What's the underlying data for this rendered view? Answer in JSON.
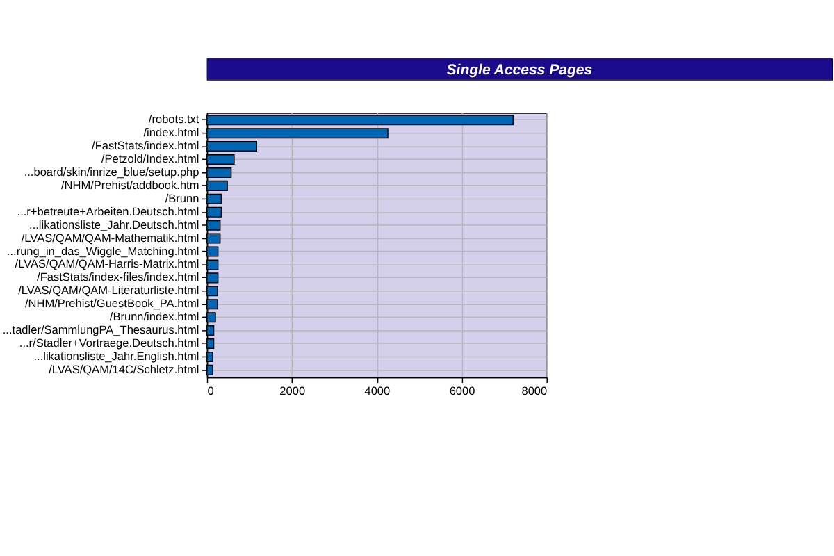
{
  "chart_data": {
    "type": "bar",
    "orientation": "horizontal",
    "title": "Single Access Pages",
    "categories": [
      "/robots.txt",
      "/index.html",
      "/FastStats/index.html",
      "/Petzold/Index.html",
      "...board/skin/inrize_blue/setup.php",
      "/NHM/Prehist/addbook.htm",
      "/Brunn",
      "...r+betreute+Arbeiten.Deutsch.html",
      "...likationsliste_Jahr.Deutsch.html",
      "/LVAS/QAM/QAM-Mathematik.html",
      "...rung_in_das_Wiggle_Matching.html",
      "/LVAS/QAM/QAM-Harris-Matrix.html",
      "/FastStats/index-files/index.html",
      "/LVAS/QAM/QAM-Literaturliste.html",
      "/NHM/Prehist/GuestBook_PA.html",
      "/Brunn/index.html",
      "...tadler/SammlungPA_Thesaurus.html",
      "...r/Stadler+Vortraege.Deutsch.html",
      "...likationsliste_Jahr.English.html",
      "/LVAS/QAM/14C/Schletz.html"
    ],
    "values": [
      7210,
      4260,
      1170,
      640,
      570,
      480,
      340,
      340,
      310,
      310,
      260,
      260,
      260,
      250,
      250,
      200,
      160,
      160,
      130,
      130
    ],
    "color": "#0066b3",
    "xlim": [
      0,
      8000
    ],
    "xticks": [
      0,
      2000,
      4000,
      6000,
      8000
    ],
    "grid": true
  }
}
